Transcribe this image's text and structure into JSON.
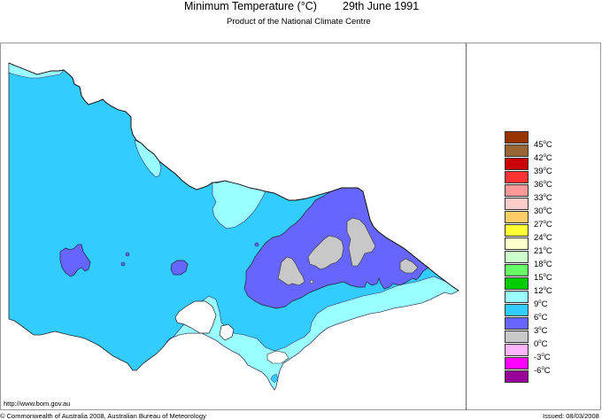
{
  "header": {
    "title": "Minimum Temperature (°C)",
    "date": "29th June 1991",
    "subtitle": "Product of the National Climate Centre"
  },
  "footer": {
    "url": "http://www.bom.gov.au",
    "copyright": "© Commonwealth of Australia 2008, Australian Bureau of Meteorology",
    "issued": "Issued: 08/03/2008"
  },
  "map": {
    "region": "Victoria",
    "colors": {
      "below_0": "#ffc0ff",
      "0_3": "#c8c8c8",
      "3_6": "#6666ff",
      "6_9": "#33ccff",
      "9_12": "#99ffff",
      "outline": "#333333",
      "ocean": "#ffffff"
    }
  },
  "legend": {
    "unit": "°C",
    "bins": [
      {
        "color": "#993300",
        "label": "45"
      },
      {
        "color": "#996633",
        "label": "42"
      },
      {
        "color": "#cc0000",
        "label": "39"
      },
      {
        "color": "#ff3333",
        "label": "36"
      },
      {
        "color": "#ff9999",
        "label": "33"
      },
      {
        "color": "#ffcccc",
        "label": "30"
      },
      {
        "color": "#ffcc66",
        "label": "27"
      },
      {
        "color": "#ffff33",
        "label": "24"
      },
      {
        "color": "#ffffcc",
        "label": "21"
      },
      {
        "color": "#ccffcc",
        "label": "18"
      },
      {
        "color": "#66ff66",
        "label": "15"
      },
      {
        "color": "#00cc00",
        "label": "12"
      },
      {
        "color": "#99ffff",
        "label": "9"
      },
      {
        "color": "#33ccff",
        "label": "6"
      },
      {
        "color": "#6666ff",
        "label": "3"
      },
      {
        "color": "#c8c8c8",
        "label": "0"
      },
      {
        "color": "#ffb3ff",
        "label": "-3"
      },
      {
        "color": "#ff00ff",
        "label": "-6"
      },
      {
        "color": "#990099",
        "label": ""
      }
    ]
  }
}
